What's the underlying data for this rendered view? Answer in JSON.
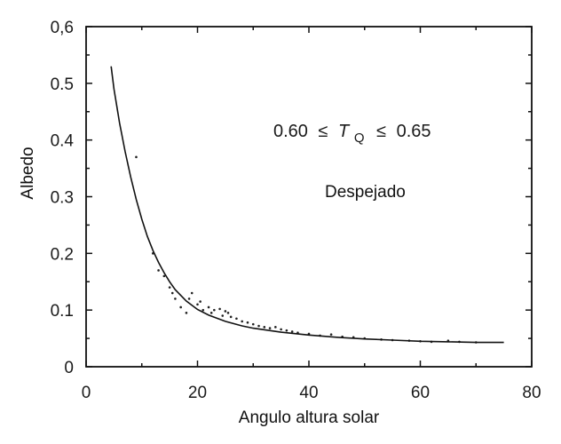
{
  "chart_data": {
    "type": "scatter",
    "xlabel": "Angulo altura solar",
    "ylabel": "Albedo",
    "xlim": [
      0,
      80
    ],
    "ylim": [
      0,
      0.6
    ],
    "x_ticks": [
      "0",
      "20",
      "40",
      "60",
      "80"
    ],
    "y_ticks": [
      "0",
      "0.1",
      "0.2",
      "0.3",
      "0.4",
      "0.5",
      "0,6"
    ],
    "grid": false,
    "annotations": {
      "condition": {
        "left": "0.60",
        "symbol": "≤",
        "var": "T",
        "sub": "Q",
        "symbol2": "≤",
        "right": "0.65"
      },
      "label": "Despejado"
    },
    "series": [
      {
        "kind": "fit-curve",
        "x": [
          4.5,
          5,
          6,
          7,
          8,
          9,
          10,
          11,
          12,
          13,
          14,
          15,
          16,
          18,
          20,
          22,
          25,
          28,
          30,
          35,
          40,
          45,
          50,
          55,
          60,
          65,
          70,
          75
        ],
        "y": [
          0.53,
          0.49,
          0.43,
          0.38,
          0.335,
          0.295,
          0.26,
          0.23,
          0.205,
          0.184,
          0.166,
          0.15,
          0.136,
          0.116,
          0.101,
          0.091,
          0.08,
          0.072,
          0.068,
          0.061,
          0.056,
          0.052,
          0.049,
          0.047,
          0.045,
          0.044,
          0.043,
          0.043
        ]
      },
      {
        "kind": "observations",
        "x": [
          9,
          12,
          13,
          14,
          15,
          15.5,
          16,
          17,
          18,
          18.5,
          19,
          20,
          20.5,
          21,
          22,
          22.5,
          23,
          24,
          24.5,
          25,
          25.5,
          26,
          27,
          28,
          29,
          30,
          31,
          32,
          33,
          34,
          35,
          36,
          37,
          38,
          40,
          42,
          44,
          46,
          48,
          50,
          53,
          55,
          58,
          60,
          62,
          65,
          67,
          70
        ],
        "y": [
          0.37,
          0.2,
          0.17,
          0.16,
          0.14,
          0.13,
          0.12,
          0.105,
          0.095,
          0.12,
          0.13,
          0.11,
          0.115,
          0.1,
          0.105,
          0.095,
          0.1,
          0.102,
          0.09,
          0.098,
          0.095,
          0.088,
          0.085,
          0.08,
          0.078,
          0.075,
          0.072,
          0.07,
          0.068,
          0.07,
          0.066,
          0.064,
          0.062,
          0.06,
          0.058,
          0.055,
          0.057,
          0.053,
          0.052,
          0.05,
          0.048,
          0.047,
          0.046,
          0.045,
          0.044,
          0.046,
          0.044,
          0.043
        ]
      }
    ]
  }
}
